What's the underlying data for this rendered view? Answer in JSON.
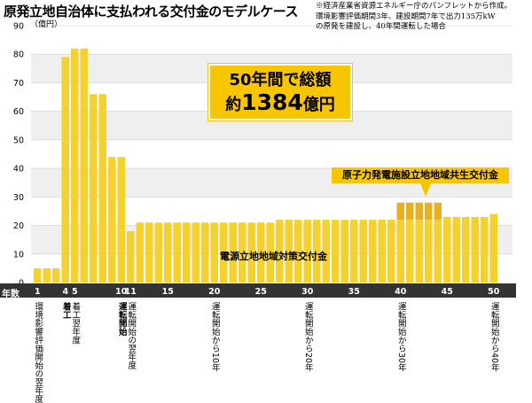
{
  "title": "原発立地自治体に支払われる交付金のモデルケース",
  "note": [
    "※経済産業省資源エネルギー庁のパンフレットから作成。",
    "環境影響評価期間3年、建設期間7年で出力135万kW",
    "の原発を建設し、40年間運転した場合"
  ],
  "total_label": {
    "line1": "50年間で総額",
    "prefix": "約",
    "amount": "1384",
    "suffix": "億円"
  },
  "x_axis_title": "年数",
  "timeline_labels": [
    {
      "text": "環境影響評価開始の翌年度",
      "year": 1,
      "bold": false
    },
    {
      "text": "着工",
      "year": 4,
      "bold": true
    },
    {
      "text": "着工翌年度",
      "year": 5,
      "bold": false
    },
    {
      "text": "運転開始",
      "year": 10,
      "bold": true
    },
    {
      "text": "運転開始の翌年度",
      "year": 11,
      "bold": false
    },
    {
      "text": "運転開始から10年",
      "year": 20,
      "bold": false
    },
    {
      "text": "運転開始から20年",
      "year": 30,
      "bold": false
    },
    {
      "text": "運転開始から30年",
      "year": 40,
      "bold": false
    },
    {
      "text": "運転開始から40年",
      "year": 50,
      "bold": false
    }
  ],
  "colors": {
    "bar": "#f5d12e",
    "bar_extra": "#e8b020",
    "band": "#efefef",
    "label_box": "#f7c600",
    "axis_bar": "#333333"
  },
  "chart_data": {
    "type": "bar",
    "title": "原発立地自治体に支払われる交付金のモデルケース",
    "ylabel": "（億円）",
    "xlabel": "年数",
    "ylim": [
      0,
      90
    ],
    "yticks": [
      0,
      10,
      20,
      30,
      40,
      50,
      60,
      70,
      80,
      90
    ],
    "x_tick_labels": [
      "1",
      "4",
      "5",
      "10",
      "11",
      "15",
      "20",
      "25",
      "30",
      "35",
      "40",
      "45",
      "50"
    ],
    "x_tick_positions": [
      1,
      4,
      5,
      10,
      11,
      15,
      20,
      25,
      30,
      35,
      40,
      45,
      50
    ],
    "years": [
      1,
      2,
      3,
      4,
      5,
      6,
      7,
      8,
      9,
      10,
      11,
      12,
      13,
      14,
      15,
      16,
      17,
      18,
      19,
      20,
      21,
      22,
      23,
      24,
      25,
      26,
      27,
      28,
      29,
      30,
      31,
      32,
      33,
      34,
      35,
      36,
      37,
      38,
      39,
      40,
      41,
      42,
      43,
      44,
      45,
      46,
      47,
      48,
      49,
      50
    ],
    "series": [
      {
        "name": "電源立地地域対策交付金",
        "values": [
          5,
          5,
          5,
          79,
          82,
          82,
          66,
          66,
          44,
          44,
          18,
          21,
          21,
          21,
          21,
          21,
          21,
          21,
          21,
          21,
          21,
          21,
          21,
          21,
          21,
          21,
          22,
          22,
          22,
          22,
          22,
          22,
          22,
          22,
          22,
          22,
          22,
          22,
          22,
          22,
          22,
          22,
          22,
          22,
          23,
          23,
          23,
          23,
          23,
          24
        ]
      },
      {
        "name": "原子力発電施設立地地域共生交付金",
        "values": [
          0,
          0,
          0,
          0,
          0,
          0,
          0,
          0,
          0,
          0,
          0,
          0,
          0,
          0,
          0,
          0,
          0,
          0,
          0,
          0,
          0,
          0,
          0,
          0,
          0,
          0,
          0,
          0,
          0,
          0,
          0,
          0,
          0,
          0,
          0,
          0,
          0,
          0,
          0,
          6,
          6,
          6,
          6,
          6,
          0,
          0,
          0,
          0,
          0,
          0
        ]
      }
    ],
    "annotation": "50年間で総額 約1384億円"
  }
}
